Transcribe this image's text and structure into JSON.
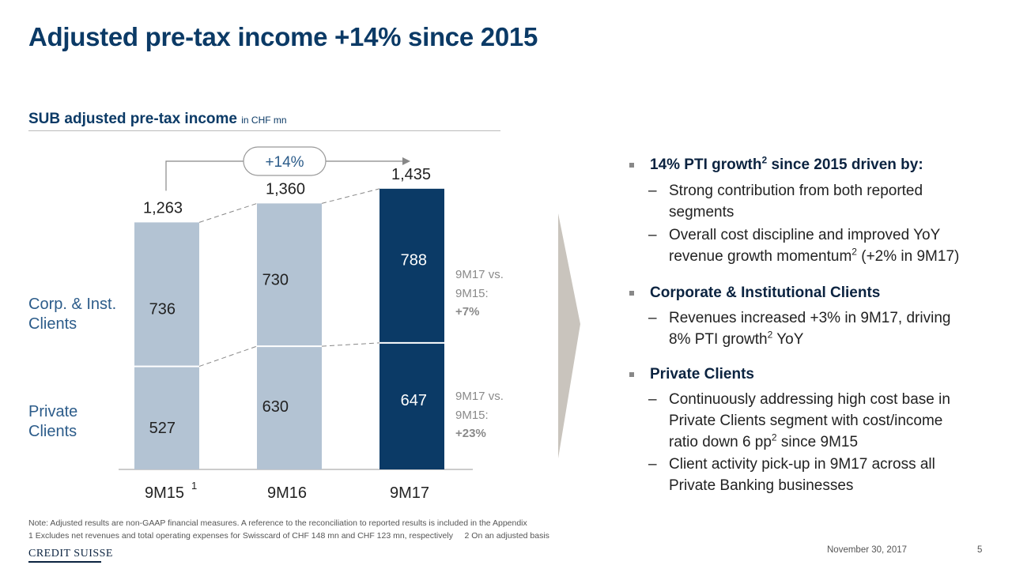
{
  "title": "Adjusted pre-tax income +14% since 2015",
  "chart_title": "SUB adjusted pre-tax income",
  "chart_unit": "in CHF mn",
  "chart_data": {
    "type": "bar",
    "stacked": true,
    "categories": [
      "9M15",
      "9M16",
      "9M17"
    ],
    "category_superscripts": [
      "1",
      "",
      ""
    ],
    "series": [
      {
        "name": "Private Clients",
        "values": [
          527,
          630,
          647
        ]
      },
      {
        "name": "Corp. & Inst. Clients",
        "values": [
          736,
          730,
          788
        ]
      }
    ],
    "totals": [
      1263,
      1360,
      1435
    ],
    "total_labels": [
      "1,263",
      "1,360",
      "1,435"
    ],
    "segment_labels": {
      "private": [
        "527",
        "630",
        "647"
      ],
      "corp": [
        "736",
        "730",
        "788"
      ]
    },
    "growth_badge": "+14%",
    "comparisons": [
      {
        "line1": "9M17 vs.",
        "line2": "9M15:",
        "value": "+7%"
      },
      {
        "line1": "9M17 vs.",
        "line2": "9M15:",
        "value": "+23%"
      }
    ],
    "colors": {
      "prior": "#b3c3d3",
      "current": "#0b3a66"
    }
  },
  "segment_labels": {
    "corp_line1": "Corp. & Inst.",
    "corp_line2": "Clients",
    "private_line1": "Private",
    "private_line2": "Clients"
  },
  "bullets": {
    "b1_head_a": "14% PTI growth",
    "b1_head_sup": "2",
    "b1_head_b": "since 2015 driven by:",
    "b1_s1_l1": "Strong contribution from both reported",
    "b1_s1_l2": "segments",
    "b1_s2_l1": "Overall cost discipline and improved YoY",
    "b1_s2_l2a": "revenue growth momentum",
    "b1_s2_l2sup": "2",
    "b1_s2_l2b": "(+2% in 9M17)",
    "b2_head": "Corporate & Institutional Clients",
    "b2_s1_l1": "Revenues increased +3% in 9M17, driving",
    "b2_s1_l2a": "8% PTI growth",
    "b2_s1_l2sup": "2",
    "b2_s1_l2b": "YoY",
    "b3_head": "Private Clients",
    "b3_s1_l1": "Continuously addressing high cost base in",
    "b3_s1_l2": "Private Clients segment with cost/income",
    "b3_s1_l3a": "ratio down 6 pp",
    "b3_s1_l3sup": "2",
    "b3_s1_l3b": "since 9M15",
    "b3_s2_l1": "Client activity pick-up in 9M17 across all",
    "b3_s2_l2": "Private Banking businesses",
    "dash": "–"
  },
  "notes": {
    "line1": "Note: Adjusted results are non-GAAP financial measures. A reference to the reconciliation to reported results is included in the Appendix",
    "line2": "1 Excludes net revenues and total operating expenses for Swisscard of CHF 148 mn and CHF 123 mn, respectively     2 On an adjusted basis"
  },
  "footer": {
    "logo": "CREDIT SUISSE",
    "date": "November 30, 2017",
    "page": "5"
  }
}
